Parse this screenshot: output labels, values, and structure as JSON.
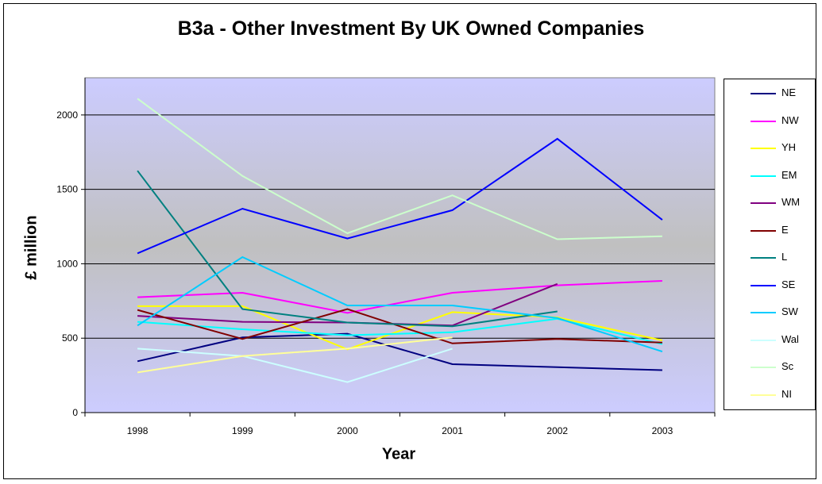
{
  "chart_data": {
    "type": "line",
    "title": "B3a - Other Investment By UK Owned Companies",
    "xlabel": "Year",
    "ylabel": "£ million",
    "categories": [
      "1998",
      "1999",
      "2000",
      "2001",
      "2002",
      "2003"
    ],
    "ylim": [
      0,
      2250
    ],
    "yticks": [
      0,
      500,
      1000,
      1500,
      2000
    ],
    "grid": true,
    "legend_position": "right",
    "series": [
      {
        "name": "NE",
        "color": "#000080",
        "values": [
          345,
          505,
          530,
          325,
          305,
          285
        ]
      },
      {
        "name": "NW",
        "color": "#ff00ff",
        "values": [
          775,
          805,
          670,
          805,
          855,
          885
        ]
      },
      {
        "name": "YH",
        "color": "#ffff00",
        "values": [
          715,
          715,
          425,
          675,
          640,
          485
        ]
      },
      {
        "name": "EM",
        "color": "#00ffff",
        "values": [
          610,
          560,
          520,
          540,
          630,
          460
        ]
      },
      {
        "name": "WM",
        "color": "#800080",
        "values": [
          650,
          610,
          605,
          585,
          865,
          null
        ]
      },
      {
        "name": "E",
        "color": "#800000",
        "values": [
          690,
          495,
          695,
          465,
          495,
          470
        ]
      },
      {
        "name": "L",
        "color": "#008080",
        "values": [
          1625,
          695,
          605,
          580,
          680,
          null
        ]
      },
      {
        "name": "SE",
        "color": "#0000ff",
        "values": [
          1070,
          1370,
          1170,
          1360,
          1840,
          1295
        ]
      },
      {
        "name": "SW",
        "color": "#00ccff",
        "values": [
          585,
          1045,
          720,
          720,
          635,
          410
        ]
      },
      {
        "name": "Wal",
        "color": "#ccffff",
        "values": [
          430,
          380,
          205,
          430,
          null,
          null
        ]
      },
      {
        "name": "Sc",
        "color": "#ccffcc",
        "values": [
          2110,
          1590,
          1205,
          1460,
          1165,
          1185
        ]
      },
      {
        "name": "NI",
        "color": "#ffff99",
        "values": [
          270,
          380,
          430,
          505,
          null,
          null
        ]
      }
    ]
  }
}
